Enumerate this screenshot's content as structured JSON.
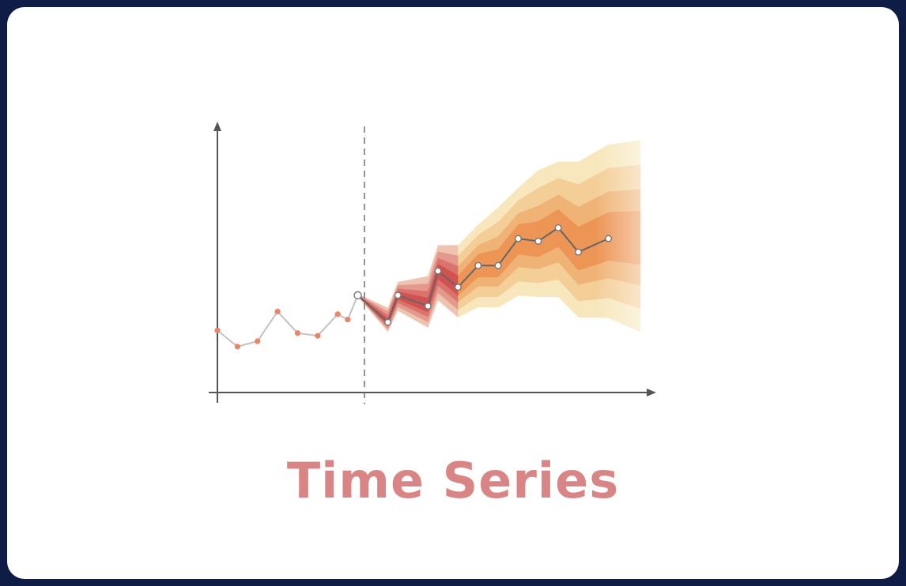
{
  "title": "Time Series",
  "colors": {
    "background_frame": "#0f1c46",
    "card": "#ffffff",
    "title": "#d98585",
    "history_line": "#c2c2c2",
    "history_points": "#e8866a",
    "forecast_line": "#666666",
    "forecast_points_fill": "#ffffff",
    "forecast_points_stroke": "#777777",
    "axis": "#555555",
    "fan_bands_outer_to_inner": [
      "#f7e3b0",
      "#f3c990",
      "#efae70",
      "#eb8f50"
    ],
    "fan_bands_near_start_outer_to_inner": [
      "#e6a8a8",
      "#dd8080",
      "#d65858",
      "#c83a3a"
    ]
  },
  "chart_data": {
    "type": "line",
    "title": "",
    "xlabel": "",
    "ylabel": "",
    "grid": false,
    "ylim": [
      0,
      10
    ],
    "xlim": [
      0,
      22
    ],
    "forecast_start_x": 7,
    "series": [
      {
        "role": "history",
        "x": [
          0,
          1,
          2,
          3,
          4,
          5,
          6,
          6.5,
          7
        ],
        "y": [
          2.3,
          1.7,
          1.9,
          3.0,
          2.2,
          2.1,
          2.9,
          2.7,
          3.6
        ]
      },
      {
        "role": "forecast",
        "x": [
          7,
          8.5,
          9,
          10.5,
          11,
          12,
          13,
          14,
          15,
          16,
          17,
          18,
          19.5
        ],
        "y": [
          3.6,
          2.6,
          3.6,
          3.2,
          4.5,
          3.9,
          4.7,
          4.7,
          5.7,
          5.6,
          6.1,
          5.2,
          5.7
        ]
      }
    ]
  }
}
